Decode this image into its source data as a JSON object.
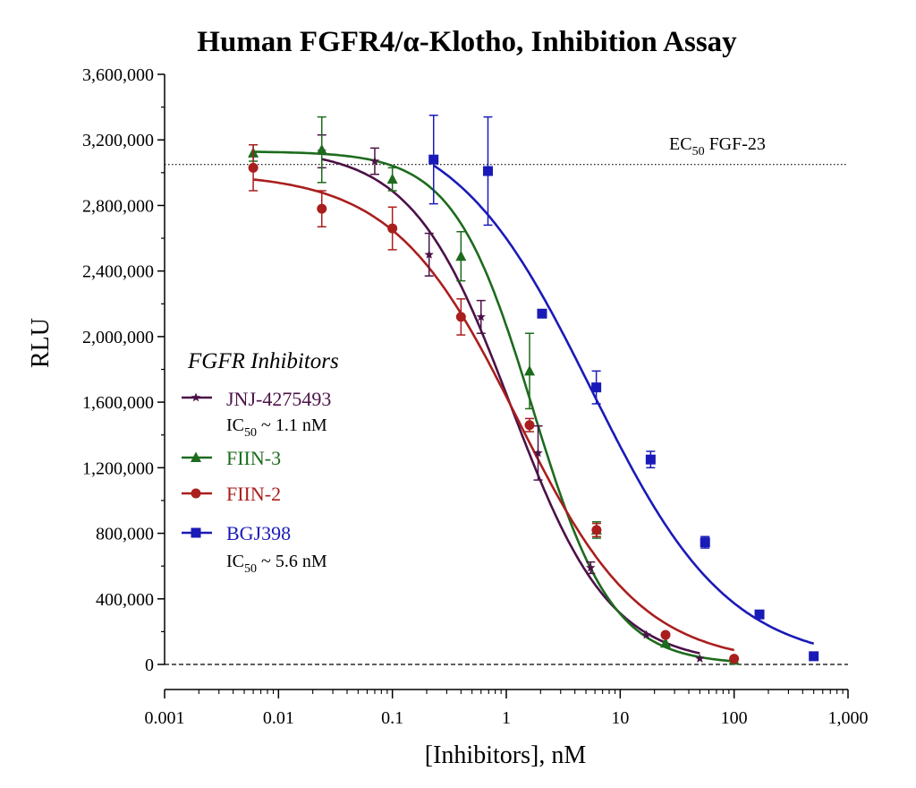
{
  "chart_data": {
    "type": "scatter",
    "title": "Human FGFR4/α-Klotho, Inhibition Assay",
    "xlabel": "[Inhibitors], nM",
    "ylabel": "RLU",
    "x_scale": "log",
    "xlim": [
      0.001,
      1000
    ],
    "ylim": [
      0,
      3600000
    ],
    "x_ticks": [
      {
        "value": 0.001,
        "label": "0.001"
      },
      {
        "value": 0.01,
        "label": "0.01"
      },
      {
        "value": 0.1,
        "label": "0.1"
      },
      {
        "value": 1,
        "label": "1"
      },
      {
        "value": 10,
        "label": "10"
      },
      {
        "value": 100,
        "label": "100"
      },
      {
        "value": 1000,
        "label": "1,000"
      }
    ],
    "y_ticks": [
      {
        "value": 0,
        "label": "0"
      },
      {
        "value": 400000,
        "label": "400,000"
      },
      {
        "value": 800000,
        "label": "800,000"
      },
      {
        "value": 1200000,
        "label": "1,200,000"
      },
      {
        "value": 1600000,
        "label": "1,600,000"
      },
      {
        "value": 2000000,
        "label": "2,000,000"
      },
      {
        "value": 2400000,
        "label": "2,400,000"
      },
      {
        "value": 2800000,
        "label": "2,800,000"
      },
      {
        "value": 3200000,
        "label": "3,200,000"
      },
      {
        "value": 3600000,
        "label": "3,600,000"
      }
    ],
    "grid": false,
    "legend_title": "FGFR Inhibitors",
    "legend_position": "left-center",
    "reference_line": {
      "label": "EC",
      "label_sub": "50",
      "label_rest": " FGF-23",
      "y": 3050000
    },
    "series": [
      {
        "name": "JNJ-4275493",
        "color": "#4b1248",
        "marker": "star",
        "ic50_prefix": "IC",
        "ic50_sub": "50",
        "ic50_rest": " ~ 1.1 nM",
        "points": [
          {
            "x": 0.024,
            "y": 3130000,
            "err": 100000
          },
          {
            "x": 0.07,
            "y": 3070000,
            "err": 80000
          },
          {
            "x": 0.21,
            "y": 2500000,
            "err": 130000
          },
          {
            "x": 0.6,
            "y": 2120000,
            "err": 100000
          },
          {
            "x": 1.9,
            "y": 1290000,
            "err": 165000
          },
          {
            "x": 5.5,
            "y": 590000,
            "err": 35000
          },
          {
            "x": 17,
            "y": 180000,
            "err": 0
          },
          {
            "x": 50,
            "y": 35000,
            "err": 0
          }
        ],
        "curve": {
          "top": 3150000,
          "bottom": 0,
          "ic50": 1.1,
          "hill": 1.0,
          "x_from": 0.024,
          "x_to": 50
        }
      },
      {
        "name": "FIIN-3",
        "color": "#1d6b1d",
        "marker": "triangle",
        "points": [
          {
            "x": 0.006,
            "y": 3120000,
            "err": 50000
          },
          {
            "x": 0.024,
            "y": 3140000,
            "err": 200000
          },
          {
            "x": 0.1,
            "y": 2960000,
            "err": 70000
          },
          {
            "x": 0.4,
            "y": 2490000,
            "err": 150000
          },
          {
            "x": 1.6,
            "y": 1790000,
            "err": 230000
          },
          {
            "x": 6.2,
            "y": 820000,
            "err": 50000
          },
          {
            "x": 25,
            "y": 130000,
            "err": 0
          },
          {
            "x": 100,
            "y": 25000,
            "err": 0
          }
        ],
        "curve": {
          "top": 3130000,
          "bottom": 0,
          "ic50": 1.7,
          "hill": 1.25,
          "x_from": 0.006,
          "x_to": 100
        }
      },
      {
        "name": "FIIN-2",
        "color": "#aa1e1e",
        "marker": "circle",
        "points": [
          {
            "x": 0.006,
            "y": 3030000,
            "err": 140000
          },
          {
            "x": 0.024,
            "y": 2780000,
            "err": 110000
          },
          {
            "x": 0.1,
            "y": 2660000,
            "err": 130000
          },
          {
            "x": 0.4,
            "y": 2120000,
            "err": 110000
          },
          {
            "x": 1.6,
            "y": 1460000,
            "err": 40000
          },
          {
            "x": 6.2,
            "y": 820000,
            "err": 40000
          },
          {
            "x": 25,
            "y": 180000,
            "err": 0
          },
          {
            "x": 100,
            "y": 35000,
            "err": 0
          }
        ],
        "curve": {
          "top": 3000000,
          "bottom": 0,
          "ic50": 1.25,
          "hill": 0.8,
          "x_from": 0.006,
          "x_to": 100
        }
      },
      {
        "name": "BGJ398",
        "color": "#1a1ab8",
        "marker": "square",
        "ic50_prefix": "IC",
        "ic50_sub": "50",
        "ic50_rest": " ~ 5.6 nM",
        "points": [
          {
            "x": 0.23,
            "y": 3080000,
            "err": 270000
          },
          {
            "x": 0.69,
            "y": 3010000,
            "err": 330000
          },
          {
            "x": 2.06,
            "y": 2140000,
            "err": 0
          },
          {
            "x": 6.17,
            "y": 1690000,
            "err": 100000
          },
          {
            "x": 18.5,
            "y": 1250000,
            "err": 50000
          },
          {
            "x": 55.6,
            "y": 745000,
            "err": 35000
          },
          {
            "x": 167,
            "y": 305000,
            "err": 0
          },
          {
            "x": 500,
            "y": 50000,
            "err": 0
          }
        ],
        "curve": {
          "top": 3350000,
          "bottom": 0,
          "ic50": 5.6,
          "hill": 0.72,
          "x_from": 0.23,
          "x_to": 500
        }
      }
    ]
  }
}
